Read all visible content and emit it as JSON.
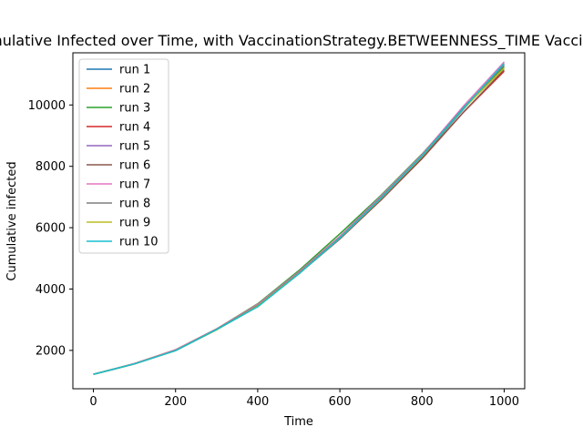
{
  "chart_data": {
    "type": "line",
    "title": "Cumulative Infected over Time, with VaccinationStrategy.BETWEENNESS_TIME Vaccination",
    "xlabel": "Time",
    "ylabel": "Cumulative infected",
    "xlim": [
      -50,
      1050
    ],
    "ylim": [
      750,
      11700
    ],
    "xticks": [
      0,
      200,
      400,
      600,
      800,
      1000
    ],
    "yticks": [
      2000,
      4000,
      6000,
      8000,
      10000
    ],
    "grid": false,
    "legend_position": "top-left",
    "x": [
      0,
      100,
      200,
      300,
      400,
      500,
      600,
      700,
      800,
      900,
      1000
    ],
    "series": [
      {
        "name": "run 1",
        "color": "#1f77b4",
        "values": [
          1220,
          1560,
          2000,
          2680,
          3450,
          4500,
          5650,
          6950,
          8300,
          9850,
          11300
        ]
      },
      {
        "name": "run 2",
        "color": "#ff7f0e",
        "values": [
          1220,
          1570,
          2020,
          2700,
          3480,
          4550,
          5700,
          7000,
          8350,
          9900,
          11350
        ]
      },
      {
        "name": "run 3",
        "color": "#2ca02c",
        "values": [
          1220,
          1570,
          2020,
          2700,
          3520,
          4600,
          5800,
          7050,
          8400,
          9900,
          11250
        ]
      },
      {
        "name": "run 4",
        "color": "#d62728",
        "values": [
          1220,
          1560,
          2000,
          2680,
          3460,
          4520,
          5650,
          6900,
          8250,
          9750,
          11100
        ]
      },
      {
        "name": "run 5",
        "color": "#9467bd",
        "values": [
          1220,
          1570,
          2010,
          2690,
          3470,
          4540,
          5700,
          7000,
          8350,
          9900,
          11400
        ]
      },
      {
        "name": "run 6",
        "color": "#8c564b",
        "values": [
          1220,
          1560,
          2000,
          2680,
          3450,
          4500,
          5630,
          6900,
          8250,
          9750,
          11150
        ]
      },
      {
        "name": "run 7",
        "color": "#e377c2",
        "values": [
          1220,
          1570,
          2020,
          2700,
          3500,
          4560,
          5720,
          7020,
          8380,
          9950,
          11400
        ]
      },
      {
        "name": "run 8",
        "color": "#7f7f7f",
        "values": [
          1220,
          1560,
          2000,
          2690,
          3470,
          4530,
          5680,
          6980,
          8350,
          9900,
          11300
        ]
      },
      {
        "name": "run 9",
        "color": "#bcbd22",
        "values": [
          1220,
          1560,
          1990,
          2670,
          3440,
          4500,
          5660,
          6950,
          8320,
          9870,
          11200
        ]
      },
      {
        "name": "run 10",
        "color": "#17becf",
        "values": [
          1220,
          1560,
          1990,
          2680,
          3420,
          4490,
          5660,
          6960,
          8340,
          9880,
          11350
        ]
      }
    ]
  }
}
